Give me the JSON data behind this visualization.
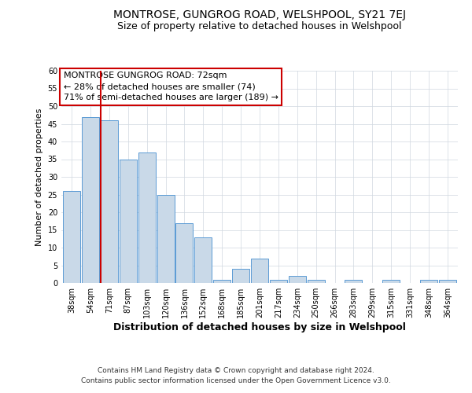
{
  "title": "MONTROSE, GUNGROG ROAD, WELSHPOOL, SY21 7EJ",
  "subtitle": "Size of property relative to detached houses in Welshpool",
  "xlabel": "Distribution of detached houses by size in Welshpool",
  "ylabel": "Number of detached properties",
  "bar_labels": [
    "38sqm",
    "54sqm",
    "71sqm",
    "87sqm",
    "103sqm",
    "120sqm",
    "136sqm",
    "152sqm",
    "168sqm",
    "185sqm",
    "201sqm",
    "217sqm",
    "234sqm",
    "250sqm",
    "266sqm",
    "283sqm",
    "299sqm",
    "315sqm",
    "331sqm",
    "348sqm",
    "364sqm"
  ],
  "bar_values": [
    26,
    47,
    46,
    35,
    37,
    25,
    17,
    13,
    1,
    4,
    7,
    1,
    2,
    1,
    0,
    1,
    0,
    1,
    0,
    1,
    1
  ],
  "bar_color": "#c9d9e8",
  "bar_edge_color": "#5b9bd5",
  "highlight_line_color": "#cc0000",
  "highlight_bar_index": 2,
  "ylim": [
    0,
    60
  ],
  "yticks": [
    0,
    5,
    10,
    15,
    20,
    25,
    30,
    35,
    40,
    45,
    50,
    55,
    60
  ],
  "annotation_title": "MONTROSE GUNGROG ROAD: 72sqm",
  "annotation_line1": "← 28% of detached houses are smaller (74)",
  "annotation_line2": "71% of semi-detached houses are larger (189) →",
  "annotation_box_color": "#ffffff",
  "annotation_box_edge": "#cc0000",
  "footer1": "Contains HM Land Registry data © Crown copyright and database right 2024.",
  "footer2": "Contains public sector information licensed under the Open Government Licence v3.0.",
  "background_color": "#ffffff",
  "grid_color": "#d0d8e0",
  "title_fontsize": 10,
  "subtitle_fontsize": 9,
  "xlabel_fontsize": 9,
  "ylabel_fontsize": 8,
  "tick_fontsize": 7,
  "annotation_fontsize": 8,
  "footer_fontsize": 6.5
}
